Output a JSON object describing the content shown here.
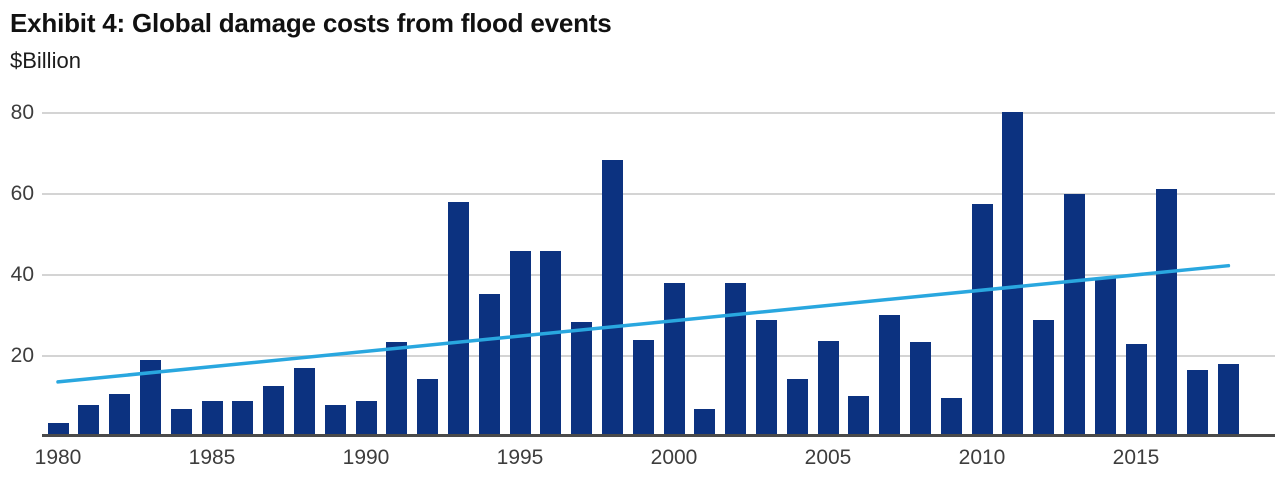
{
  "header": {
    "title": "Exhibit 4: Global damage costs from flood events",
    "subtitle": "$Billion"
  },
  "colors": {
    "bar": "#0c3280",
    "trend_line": "#29a7df",
    "gridline": "#d4d4d4",
    "axis_line": "#4a4a4a",
    "axis_text": "#3d3d3d",
    "title_text": "#111111"
  },
  "chart_data": {
    "type": "bar",
    "title": "Exhibit 4: Global damage costs from flood events",
    "ylabel": "$Billion",
    "xlabel": "",
    "ylim": [
      0,
      80
    ],
    "yticks": [
      20,
      40,
      60,
      80
    ],
    "xticks": [
      1980,
      1985,
      1990,
      1995,
      2000,
      2005,
      2010,
      2015
    ],
    "grid": "horizontal",
    "legend": "none",
    "categories": [
      1980,
      1981,
      1982,
      1983,
      1984,
      1985,
      1986,
      1987,
      1988,
      1989,
      1990,
      1991,
      1992,
      1993,
      1994,
      1995,
      1996,
      1997,
      1998,
      1999,
      2000,
      2001,
      2002,
      2003,
      2004,
      2005,
      2006,
      2007,
      2008,
      2009,
      2010,
      2011,
      2012,
      2013,
      2014,
      2015,
      2016,
      2017,
      2018
    ],
    "values": [
      3.5,
      8,
      10.5,
      19,
      7,
      9,
      9,
      12.5,
      17,
      8,
      9,
      23.5,
      14.3,
      58,
      35.3,
      46,
      46,
      28.5,
      68.5,
      24,
      38,
      7,
      38,
      29,
      14.3,
      23.7,
      10.2,
      30.2,
      23.5,
      9.7,
      57.5,
      80.3,
      28.9,
      60,
      39.3,
      23,
      61.2,
      16.5,
      18
    ],
    "trend_line": {
      "name": "linear-trend",
      "start_year": 1980,
      "start_value": 13.6,
      "end_year": 2018,
      "end_value": 42.3
    }
  }
}
